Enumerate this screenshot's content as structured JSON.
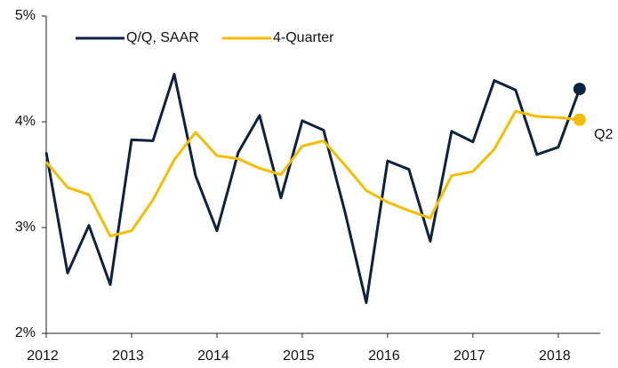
{
  "chart_data": {
    "type": "line",
    "x": [
      2012,
      2012.25,
      2012.5,
      2012.75,
      2013,
      2013.25,
      2013.5,
      2013.75,
      2014,
      2014.25,
      2014.5,
      2014.75,
      2015,
      2015.25,
      2015.5,
      2015.75,
      2016,
      2016.25,
      2016.5,
      2016.75,
      2017,
      2017.25,
      2017.5,
      2017.75,
      2018,
      2018.25
    ],
    "series": [
      {
        "name": "Q/Q, SAAR",
        "color": "#0d2240",
        "values": [
          3.71,
          2.57,
          3.02,
          2.46,
          3.83,
          3.82,
          4.45,
          3.49,
          2.97,
          3.71,
          4.06,
          3.28,
          4.01,
          3.92,
          3.15,
          2.29,
          3.63,
          3.55,
          2.87,
          3.91,
          3.81,
          4.39,
          4.3,
          3.69,
          3.76,
          4.31
        ]
      },
      {
        "name": "4-Quarter",
        "color": "#f5bd00",
        "values": [
          3.62,
          3.38,
          3.31,
          2.92,
          2.97,
          3.26,
          3.64,
          3.9,
          3.68,
          3.65,
          3.56,
          3.5,
          3.77,
          3.82,
          3.59,
          3.35,
          3.24,
          3.16,
          3.09,
          3.49,
          3.53,
          3.74,
          4.1,
          4.05,
          4.04,
          4.02
        ]
      }
    ],
    "annotation": "Q2",
    "xlim": [
      2012,
      2018.7
    ],
    "xticks": [
      2012,
      2013,
      2014,
      2015,
      2016,
      2017,
      2018
    ],
    "ylim": [
      2,
      5
    ],
    "yticks": [
      {
        "value": 2,
        "label": "2%"
      },
      {
        "value": 3,
        "label": "3%"
      },
      {
        "value": 4,
        "label": "4%"
      },
      {
        "value": 5,
        "label": "5%"
      }
    ],
    "grid": false,
    "legend": "top-left"
  }
}
